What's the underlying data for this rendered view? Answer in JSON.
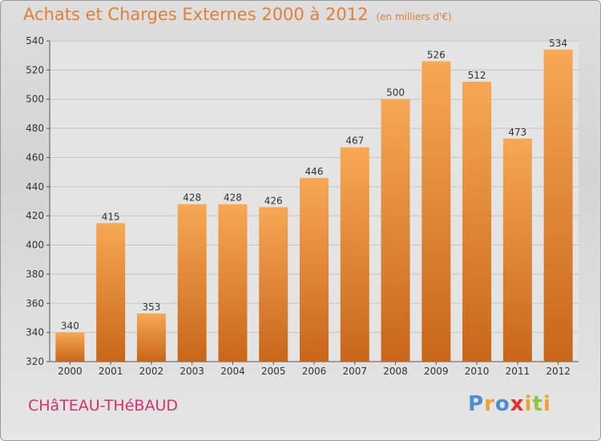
{
  "title": "Achats et Charges Externes 2000 à 2012",
  "subtitle": "(en milliers d'€)",
  "commune": "CHâTEAU-THéBAUD",
  "logo": {
    "text": "Proxiti",
    "colors": [
      "#4a8fd0",
      "#f0a030",
      "#4a8fd0",
      "#e0302f",
      "#f0a030",
      "#8cc63f",
      "#f0a030"
    ]
  },
  "colors": {
    "accent": "#e07f36",
    "commune": "#d2336b",
    "bar_top": "#f7a854",
    "bar_bottom": "#c8661a"
  },
  "chart_data": {
    "type": "bar",
    "categories": [
      "2000",
      "2001",
      "2002",
      "2003",
      "2004",
      "2005",
      "2006",
      "2007",
      "2008",
      "2009",
      "2010",
      "2011",
      "2012"
    ],
    "values": [
      340,
      415,
      353,
      428,
      428,
      426,
      446,
      467,
      500,
      526,
      512,
      473,
      534
    ],
    "y_ticks": [
      "320",
      "340",
      "360",
      "380",
      "400",
      "420",
      "440",
      "460",
      "480",
      "500",
      "520",
      "540"
    ],
    "ylim": [
      320,
      540
    ],
    "grid": true,
    "title": "Achats et Charges Externes 2000 à 2012",
    "xlabel": "",
    "ylabel": ""
  }
}
